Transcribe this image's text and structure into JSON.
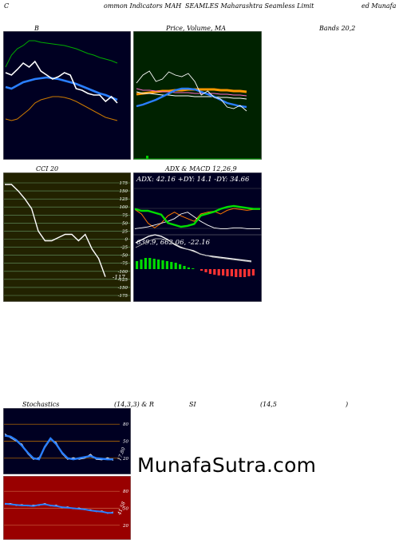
{
  "header": {
    "left": "C",
    "mid1": "ommon  Indicators MAH",
    "mid2": "SEAMLES Maharashtra  Seamless Limit",
    "right": "ed Munafa"
  },
  "panel_titles": {
    "bb": "B",
    "price": "Price, Volume, MA",
    "bands": "Bands 20,2",
    "cci": "CCI 20",
    "adx": "ADX  & MACD 12,26,9",
    "stoch_a": "Stochastics",
    "stoch_b": "(14,3,3) & R",
    "stoch_c": "SI",
    "stoch_d": "(14,5",
    "stoch_e": ")"
  },
  "adx_readout": "ADX: 42.16  +DY: 14.1 -DY: 34.66",
  "macd_readout": "639.9,  662.06,  -22.16",
  "cci_current": "-117",
  "cci_ticks": [
    "175",
    "150",
    "125",
    "100",
    "75",
    "50",
    "25",
    "0",
    "-25",
    "-50",
    "-75",
    "-100",
    "-125",
    "-150",
    "-175"
  ],
  "stoch_ticks": [
    "80",
    "50",
    "20"
  ],
  "rsi_ticks": [
    "80",
    "50",
    "20"
  ],
  "stoch_current": "17.80",
  "rsi_current": "41.58",
  "watermark": "MunafaSutra.com",
  "colors": {
    "bb_bg": "#000022",
    "price_bg": "#002200",
    "cci_bg": "#222200",
    "adx_bg": "#000022",
    "stoch_bg": "#000022",
    "rsi_bg": "#990000"
  },
  "chart_data": [
    {
      "type": "line",
      "title": "B",
      "series": [
        {
          "values": [
            85,
            70,
            62,
            58,
            52,
            52,
            54,
            55,
            56,
            57,
            58,
            60,
            62,
            65,
            68,
            70,
            73,
            75,
            77,
            80
          ]
        },
        {
          "values": [
            110,
            112,
            108,
            104,
            102,
            100,
            99,
            98,
            99,
            100,
            102,
            104,
            106,
            109,
            112,
            115,
            118,
            120,
            123,
            126
          ]
        },
        {
          "values": [
            150,
            152,
            150,
            144,
            138,
            130,
            126,
            124,
            122,
            122,
            123,
            125,
            128,
            132,
            136,
            140,
            144,
            148,
            150,
            152
          ]
        },
        {
          "values": [
            92,
            95,
            88,
            80,
            85,
            78,
            90,
            95,
            100,
            97,
            92,
            95,
            112,
            114,
            118,
            120,
            120,
            128,
            122,
            130
          ]
        }
      ]
    },
    {
      "type": "line",
      "title": "Price, Volume, MA",
      "series": [
        {
          "values": [
            110,
            100,
            95,
            108,
            105,
            96,
            100,
            102,
            98,
            108,
            125,
            120,
            128,
            130,
            140,
            142,
            138,
            145
          ]
        },
        {
          "values": [
            120,
            118,
            115,
            112,
            108,
            104,
            100,
            98,
            98,
            99,
            102,
            105,
            108,
            112,
            116,
            118,
            120,
            121
          ]
        },
        {
          "values": [
            112,
            114,
            114,
            115,
            116,
            116,
            117,
            117,
            117,
            118,
            118,
            118,
            118,
            119,
            119,
            120,
            120,
            121
          ]
        },
        {
          "values": [
            124,
            123,
            122,
            121,
            120,
            120,
            119,
            119,
            118,
            118,
            118,
            118,
            118,
            119,
            119,
            120,
            120,
            121
          ]
        }
      ]
    },
    {
      "type": "line",
      "title": "CCI 20",
      "ylim": [
        -175,
        175
      ],
      "series": [
        {
          "values": [
            170,
            170,
            150,
            125,
            95,
            25,
            -5,
            -5,
            5,
            15,
            15,
            -5,
            15,
            -30,
            -60,
            -117
          ]
        }
      ]
    },
    {
      "type": "line",
      "title": "ADX  & MACD 12,26,9",
      "series": [
        {
          "name": "ADX",
          "values": [
            42,
            40,
            40,
            38,
            36,
            34,
            32,
            30,
            31,
            33,
            35,
            37,
            39,
            42,
            44,
            45,
            44,
            43,
            42,
            42
          ]
        },
        {
          "name": "+DY",
          "values": [
            14,
            15,
            16,
            18,
            20,
            22,
            25,
            30,
            32,
            27,
            22,
            18,
            15,
            14,
            14,
            15,
            15,
            14,
            14,
            14
          ]
        },
        {
          "name": "-DY",
          "values": [
            35,
            30,
            20,
            15,
            20,
            28,
            32,
            28,
            25,
            22,
            30,
            32,
            33,
            30,
            34,
            36,
            35,
            34,
            35,
            35
          ]
        },
        {
          "name": "MACD",
          "values": [
            639.9
          ]
        },
        {
          "name": "Signal",
          "values": [
            662.06
          ]
        },
        {
          "name": "Histogram",
          "values": [
            -22.16
          ]
        }
      ]
    },
    {
      "type": "line",
      "title": "Stochastics (14,3,3)",
      "ylim": [
        0,
        100
      ],
      "series": [
        {
          "values": [
            60,
            58,
            52,
            42,
            30,
            20,
            18,
            40,
            55,
            45,
            30,
            20,
            18,
            20,
            22,
            24,
            20,
            19,
            18,
            18
          ]
        }
      ]
    },
    {
      "type": "line",
      "title": "RSI (14,5)",
      "ylim": [
        0,
        100
      ],
      "series": [
        {
          "values": [
            58,
            57,
            56,
            55,
            55,
            54,
            56,
            57,
            55,
            54,
            52,
            51,
            50,
            49,
            48,
            46,
            45,
            44,
            42,
            42
          ]
        }
      ]
    }
  ]
}
